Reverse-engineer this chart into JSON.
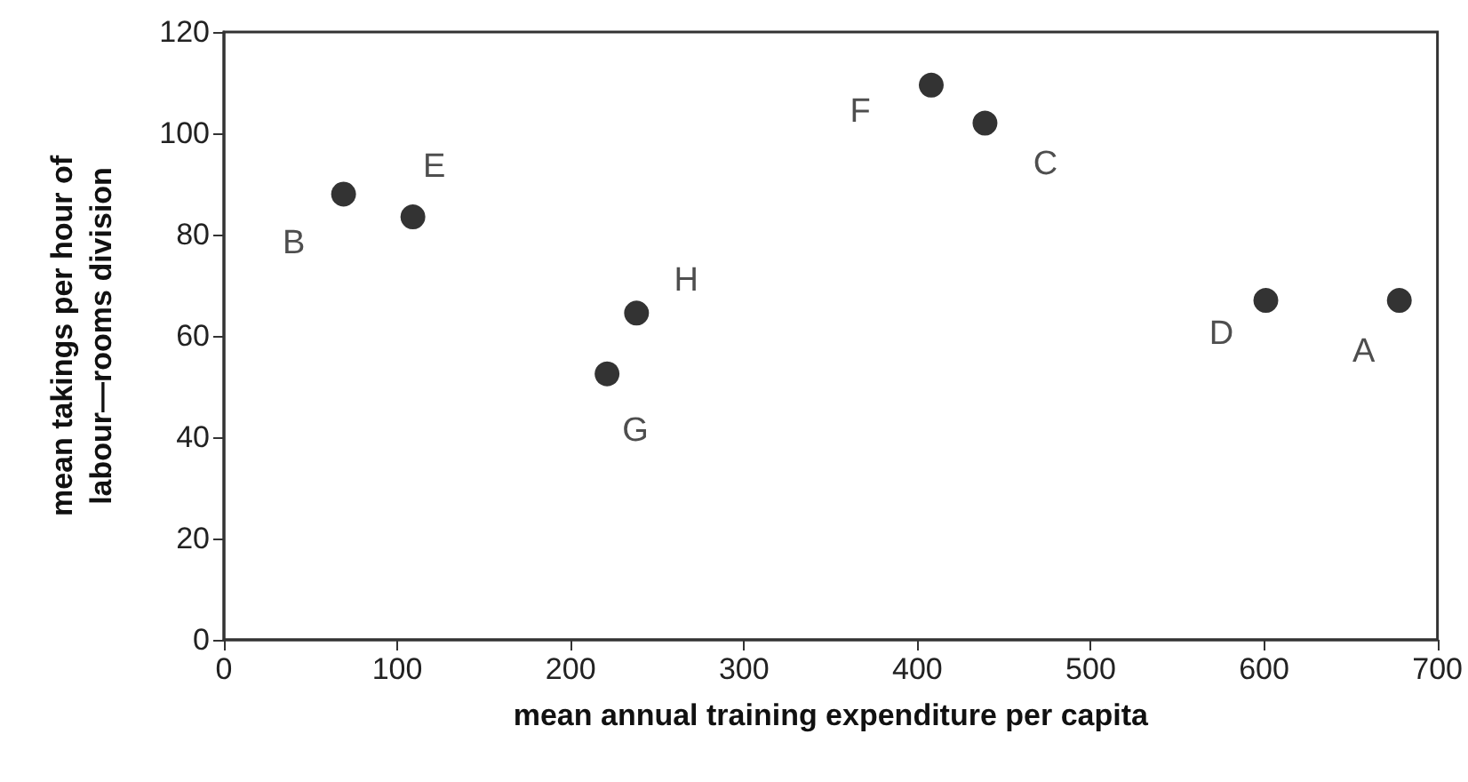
{
  "chart_data": {
    "type": "scatter",
    "xlabel": "mean annual training expenditure per capita",
    "ylabel": "mean takings per hour of labour—rooms division",
    "x": [
      69,
      109,
      238,
      221,
      408,
      439,
      601,
      678
    ],
    "values": [
      88,
      83.5,
      64.5,
      52.5,
      109.5,
      102,
      67,
      67
    ],
    "color": "#000000",
    "marker": "circle",
    "grid": false,
    "xlim": [
      0,
      700
    ],
    "xticks": [
      0,
      100,
      200,
      300,
      400,
      500,
      600,
      700
    ],
    "ylim": [
      0,
      120
    ],
    "yticks": [
      0,
      20,
      40,
      60,
      80,
      100,
      120
    ],
    "annotations": [
      {
        "text": "B",
        "x": 69,
        "y": 88
      },
      {
        "text": "E",
        "x": 109,
        "y": 83.5
      },
      {
        "text": "H",
        "x": 238,
        "y": 64.5
      },
      {
        "text": "G",
        "x": 221,
        "y": 52.5
      },
      {
        "text": "F",
        "x": 408,
        "y": 109.5
      },
      {
        "text": "C",
        "x": 439,
        "y": 102
      },
      {
        "text": "D",
        "x": 601,
        "y": 67
      },
      {
        "text": "A",
        "x": 678,
        "y": 67
      }
    ]
  }
}
